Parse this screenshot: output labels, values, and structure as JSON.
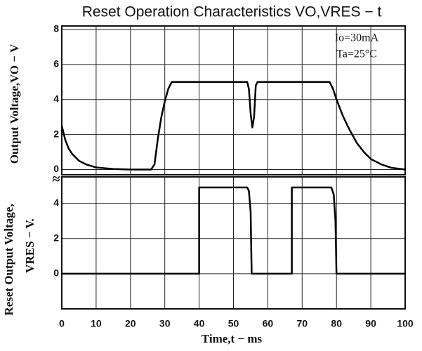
{
  "chart_data": [
    {
      "type": "line",
      "title": "Reset Operation Characteristics VO,VRES − t",
      "ylabel": "Output Voltage,VO − V",
      "annotations": [
        "Io=30mA",
        "Ta=25°C"
      ],
      "xlim": [
        0,
        100
      ],
      "ylim": [
        -0.3,
        8.2
      ],
      "yticks": [
        0,
        2,
        4,
        6,
        8
      ],
      "grid": true,
      "series": [
        {
          "name": "VO",
          "color": "#000000",
          "x": [
            0,
            1,
            2,
            3,
            5,
            7,
            10,
            15,
            20,
            26,
            27,
            28,
            29,
            30,
            31,
            32,
            54,
            54.5,
            55,
            55.5,
            56,
            56.5,
            57,
            78,
            79,
            80,
            82,
            84,
            86,
            88,
            90,
            93,
            96,
            100
          ],
          "values": [
            2.5,
            1.7,
            1.2,
            0.9,
            0.5,
            0.3,
            0.12,
            0.03,
            0,
            0,
            0.3,
            1.8,
            3,
            3.9,
            4.6,
            5,
            5,
            4.6,
            3.2,
            2.4,
            3,
            4.8,
            5,
            5,
            4.6,
            4,
            3,
            2.2,
            1.5,
            1,
            0.6,
            0.3,
            0.1,
            0
          ]
        }
      ]
    },
    {
      "type": "line",
      "ylabel": [
        "Reset Output Voltage,",
        "VRES − V."
      ],
      "xlabel": "Time,t − ms",
      "xlim": [
        0,
        100
      ],
      "xticks": [
        0,
        10,
        20,
        30,
        40,
        50,
        60,
        70,
        80,
        90,
        100
      ],
      "ylim": [
        -2,
        5.5
      ],
      "yticks": [
        0,
        2,
        4
      ],
      "grid": true,
      "series": [
        {
          "name": "VRES",
          "color": "#000000",
          "x": [
            0,
            40,
            40,
            54,
            54.5,
            55,
            55.3,
            67,
            67,
            78.5,
            79.2,
            79.7,
            80,
            100
          ],
          "values": [
            0,
            0,
            4.9,
            4.9,
            4.7,
            3.5,
            0,
            0,
            4.9,
            4.9,
            4.5,
            3,
            0,
            0
          ]
        }
      ]
    }
  ]
}
